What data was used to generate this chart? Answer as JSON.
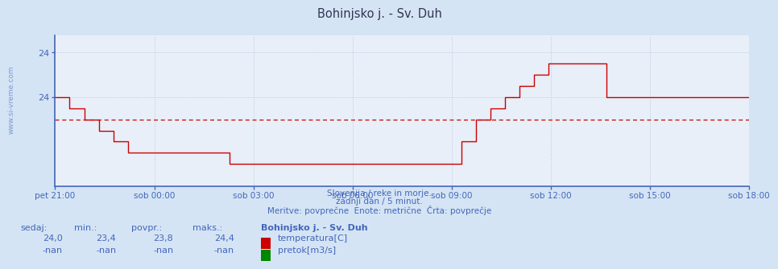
{
  "title": "Bohinjsko j. - Sv. Duh",
  "bg_color": "#d4e4f4",
  "plot_bg_color": "#e8eff8",
  "line_color": "#cc0000",
  "avg_line_color": "#cc0000",
  "grid_color": "#b8c8dc",
  "axis_color": "#4466bb",
  "text_color": "#4466bb",
  "xlabels": [
    "pet 21:00",
    "sob 00:00",
    "sob 03:00",
    "sob 06:00",
    "sob 09:00",
    "sob 12:00",
    "sob 15:00",
    "sob 18:00"
  ],
  "ytick_positions": [
    24.4,
    24.0
  ],
  "ytick_labels": [
    "24",
    "24"
  ],
  "ylim": [
    23.2,
    24.55
  ],
  "avg_value": 23.8,
  "subtitle1": "Slovenija / reke in morje.",
  "subtitle2": "zadnji dan / 5 minut.",
  "subtitle3": "Meritve: povprečne  Enote: metrične  Črta: povprečje",
  "legend_station": "Bohinjsko j. - Sv. Duh",
  "legend_temp": "temperatura[C]",
  "legend_flow": "pretok[m3/s]",
  "stat_sedaj": "24,0",
  "stat_min": "23,4",
  "stat_povpr": "23,8",
  "stat_maks": "24,4",
  "stat_sedaj2": "-nan",
  "stat_min2": "-nan",
  "stat_povpr2": "-nan",
  "stat_maks2": "-nan",
  "watermark": "www.si-vreme.com",
  "temp_data": [
    24.0,
    24.0,
    24.0,
    24.0,
    24.0,
    24.0,
    23.9,
    23.9,
    23.9,
    23.9,
    23.9,
    23.9,
    23.8,
    23.8,
    23.8,
    23.8,
    23.8,
    23.8,
    23.7,
    23.7,
    23.7,
    23.7,
    23.7,
    23.7,
    23.6,
    23.6,
    23.6,
    23.6,
    23.6,
    23.6,
    23.5,
    23.5,
    23.5,
    23.5,
    23.5,
    23.5,
    23.5,
    23.5,
    23.5,
    23.5,
    23.5,
    23.5,
    23.5,
    23.5,
    23.5,
    23.5,
    23.5,
    23.5,
    23.5,
    23.5,
    23.5,
    23.5,
    23.5,
    23.5,
    23.5,
    23.5,
    23.5,
    23.5,
    23.5,
    23.5,
    23.5,
    23.5,
    23.5,
    23.5,
    23.5,
    23.5,
    23.5,
    23.5,
    23.5,
    23.5,
    23.5,
    23.5,
    23.4,
    23.4,
    23.4,
    23.4,
    23.4,
    23.4,
    23.4,
    23.4,
    23.4,
    23.4,
    23.4,
    23.4,
    23.4,
    23.4,
    23.4,
    23.4,
    23.4,
    23.4,
    23.4,
    23.4,
    23.4,
    23.4,
    23.4,
    23.4,
    23.4,
    23.4,
    23.4,
    23.4,
    23.4,
    23.4,
    23.4,
    23.4,
    23.4,
    23.4,
    23.4,
    23.4,
    23.4,
    23.4,
    23.4,
    23.4,
    23.4,
    23.4,
    23.4,
    23.4,
    23.4,
    23.4,
    23.4,
    23.4,
    23.4,
    23.4,
    23.4,
    23.4,
    23.4,
    23.4,
    23.4,
    23.4,
    23.4,
    23.4,
    23.4,
    23.4,
    23.4,
    23.4,
    23.4,
    23.4,
    23.4,
    23.4,
    23.4,
    23.4,
    23.4,
    23.4,
    23.4,
    23.4,
    23.4,
    23.4,
    23.4,
    23.4,
    23.4,
    23.4,
    23.4,
    23.4,
    23.4,
    23.4,
    23.4,
    23.4,
    23.4,
    23.4,
    23.4,
    23.4,
    23.4,
    23.4,
    23.4,
    23.4,
    23.4,
    23.4,
    23.4,
    23.4,
    23.6,
    23.6,
    23.6,
    23.6,
    23.6,
    23.6,
    23.8,
    23.8,
    23.8,
    23.8,
    23.8,
    23.8,
    23.9,
    23.9,
    23.9,
    23.9,
    23.9,
    23.9,
    24.0,
    24.0,
    24.0,
    24.0,
    24.0,
    24.0,
    24.1,
    24.1,
    24.1,
    24.1,
    24.1,
    24.1,
    24.2,
    24.2,
    24.2,
    24.2,
    24.2,
    24.2,
    24.3,
    24.3,
    24.3,
    24.3,
    24.3,
    24.3,
    24.3,
    24.3,
    24.3,
    24.3,
    24.3,
    24.3,
    24.3,
    24.3,
    24.3,
    24.3,
    24.3,
    24.3,
    24.3,
    24.3,
    24.3,
    24.3,
    24.3,
    24.3,
    24.0,
    24.0,
    24.0,
    24.0,
    24.0,
    24.0,
    24.0,
    24.0,
    24.0,
    24.0,
    24.0,
    24.0,
    24.0,
    24.0,
    24.0,
    24.0,
    24.0,
    24.0,
    24.0,
    24.0,
    24.0,
    24.0,
    24.0,
    24.0,
    24.0,
    24.0,
    24.0,
    24.0,
    24.0,
    24.0,
    24.0,
    24.0,
    24.0,
    24.0,
    24.0,
    24.0,
    24.0,
    24.0,
    24.0,
    24.0,
    24.0,
    24.0,
    24.0,
    24.0,
    24.0,
    24.0,
    24.0,
    24.0,
    24.0,
    24.0,
    24.0,
    24.0,
    24.0,
    24.0,
    24.0,
    24.0,
    24.0,
    24.0,
    24.0,
    24.0
  ]
}
